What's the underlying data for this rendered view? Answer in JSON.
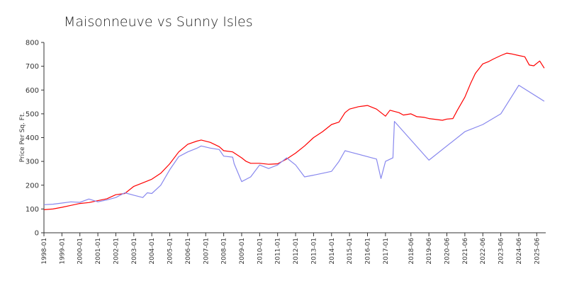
{
  "chart_data": {
    "type": "line",
    "title": "Maisonneuve vs Sunny Isles",
    "xlabel": "",
    "ylabel": "Price Per Sq. Ft.",
    "ylim": [
      0,
      800
    ],
    "yticks": [
      "0",
      "100",
      "200",
      "300",
      "400",
      "500",
      "600",
      "700",
      "800"
    ],
    "xlim": [
      "1998-01",
      "2025-12"
    ],
    "xticks": [
      "1998-01",
      "1999-01",
      "2000-01",
      "2001-01",
      "2002-01",
      "2003-01",
      "2004-01",
      "2005-01",
      "2006-01",
      "2007-01",
      "2008-01",
      "2009-01",
      "2010-01",
      "2011-01",
      "2012-01",
      "2013-01",
      "2014-01",
      "2015-01",
      "2016-01",
      "2017-01",
      "2018-06",
      "2019-06",
      "2020-06",
      "2021-06",
      "2022-06",
      "2023-06",
      "2024-06",
      "2025-06"
    ],
    "grid": false,
    "legend": "none",
    "series": [
      {
        "color": "#ff0000",
        "points": [
          [
            "1998-01",
            97
          ],
          [
            "1998-07",
            100
          ],
          [
            "1999-01",
            107
          ],
          [
            "1999-07",
            115
          ],
          [
            "2000-01",
            123
          ],
          [
            "2000-07",
            127
          ],
          [
            "2001-01",
            135
          ],
          [
            "2001-07",
            143
          ],
          [
            "2002-01",
            160
          ],
          [
            "2002-07",
            165
          ],
          [
            "2003-01",
            195
          ],
          [
            "2003-07",
            210
          ],
          [
            "2004-01",
            225
          ],
          [
            "2004-07",
            250
          ],
          [
            "2005-01",
            290
          ],
          [
            "2005-07",
            340
          ],
          [
            "2006-01",
            372
          ],
          [
            "2006-07",
            385
          ],
          [
            "2006-10",
            390
          ],
          [
            "2007-04",
            380
          ],
          [
            "2007-10",
            362
          ],
          [
            "2008-01",
            345
          ],
          [
            "2008-07",
            340
          ],
          [
            "2009-01",
            315
          ],
          [
            "2009-04",
            300
          ],
          [
            "2009-07",
            292
          ],
          [
            "2010-01",
            292
          ],
          [
            "2010-07",
            288
          ],
          [
            "2011-01",
            290
          ],
          [
            "2011-07",
            310
          ],
          [
            "2012-01",
            335
          ],
          [
            "2012-07",
            365
          ],
          [
            "2013-01",
            400
          ],
          [
            "2013-07",
            425
          ],
          [
            "2014-01",
            455
          ],
          [
            "2014-06",
            465
          ],
          [
            "2014-10",
            505
          ],
          [
            "2015-01",
            520
          ],
          [
            "2015-07",
            530
          ],
          [
            "2016-01",
            535
          ],
          [
            "2016-07",
            520
          ],
          [
            "2017-01",
            490
          ],
          [
            "2017-04",
            515
          ],
          [
            "2017-10",
            505
          ],
          [
            "2018-01",
            495
          ],
          [
            "2018-06",
            500
          ],
          [
            "2018-10",
            488
          ],
          [
            "2019-03",
            485
          ],
          [
            "2019-06",
            480
          ],
          [
            "2019-10",
            477
          ],
          [
            "2020-03",
            473
          ],
          [
            "2020-06",
            478
          ],
          [
            "2020-10",
            480
          ],
          [
            "2021-01",
            515
          ],
          [
            "2021-06",
            570
          ],
          [
            "2021-10",
            630
          ],
          [
            "2022-01",
            670
          ],
          [
            "2022-06",
            710
          ],
          [
            "2022-10",
            720
          ],
          [
            "2023-01",
            730
          ],
          [
            "2023-06",
            745
          ],
          [
            "2023-10",
            755
          ],
          [
            "2024-01",
            752
          ],
          [
            "2024-06",
            745
          ],
          [
            "2024-10",
            740
          ],
          [
            "2025-01",
            705
          ],
          [
            "2025-04",
            702
          ],
          [
            "2025-08",
            722
          ],
          [
            "2025-11",
            692
          ]
        ]
      },
      {
        "color": "#8888ee",
        "points": [
          [
            "1998-01",
            118
          ],
          [
            "1998-07",
            120
          ],
          [
            "1999-01",
            125
          ],
          [
            "1999-07",
            130
          ],
          [
            "2000-01",
            128
          ],
          [
            "2000-07",
            142
          ],
          [
            "2001-01",
            130
          ],
          [
            "2001-07",
            138
          ],
          [
            "2002-01",
            148
          ],
          [
            "2002-07",
            168
          ],
          [
            "2003-01",
            158
          ],
          [
            "2003-07",
            148
          ],
          [
            "2003-10",
            168
          ],
          [
            "2004-01",
            165
          ],
          [
            "2004-07",
            200
          ],
          [
            "2005-01",
            265
          ],
          [
            "2005-07",
            320
          ],
          [
            "2006-01",
            340
          ],
          [
            "2006-07",
            355
          ],
          [
            "2006-10",
            365
          ],
          [
            "2007-04",
            356
          ],
          [
            "2007-10",
            350
          ],
          [
            "2008-01",
            322
          ],
          [
            "2008-07",
            318
          ],
          [
            "2008-08",
            290
          ],
          [
            "2009-01",
            215
          ],
          [
            "2009-07",
            235
          ],
          [
            "2010-01",
            285
          ],
          [
            "2010-07",
            270
          ],
          [
            "2011-01",
            285
          ],
          [
            "2011-07",
            315
          ],
          [
            "2012-01",
            285
          ],
          [
            "2012-07",
            235
          ],
          [
            "2013-01",
            242
          ],
          [
            "2013-07",
            250
          ],
          [
            "2014-01",
            258
          ],
          [
            "2014-06",
            300
          ],
          [
            "2014-10",
            345
          ],
          [
            "2015-01",
            340
          ],
          [
            "2016-07",
            310
          ],
          [
            "2016-10",
            228
          ],
          [
            "2017-01",
            300
          ],
          [
            "2017-06",
            315
          ],
          [
            "2017-07",
            468
          ],
          [
            "2019-06",
            305
          ],
          [
            "2021-06",
            425
          ],
          [
            "2022-06",
            455
          ],
          [
            "2023-06",
            500
          ],
          [
            "2024-06",
            620
          ],
          [
            "2025-11",
            553
          ]
        ]
      }
    ]
  }
}
